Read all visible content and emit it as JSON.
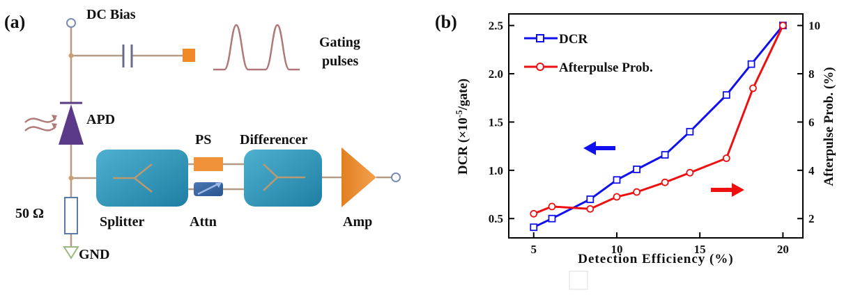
{
  "panel_a": {
    "label": "(a)",
    "dc_bias": "DC Bias",
    "gating_line1": "Gating",
    "gating_line2": "pulses",
    "apd": "APD",
    "ps": "PS",
    "differencer": "Differencer",
    "splitter": "Splitter",
    "attn": "Attn",
    "amp": "Amp",
    "resistor": "50 Ω",
    "gnd": "GND"
  },
  "panel_b": {
    "label": "(b)"
  },
  "chart_data": {
    "type": "line",
    "xlabel": "Detection Efficiency (%)",
    "ylabel_left": "DCR (×10",
    "ylabel_left_exp": "-5",
    "ylabel_left_tail": "/gate)",
    "ylabel_right": "Afterpulse Prob. (%)",
    "xlim": [
      3.5,
      21.2
    ],
    "ylim_left": [
      0.3,
      2.62
    ],
    "ylim_right": [
      1.2,
      10.48
    ],
    "x_ticks": [
      5,
      10,
      15,
      20
    ],
    "y_left_ticks": [
      0.5,
      1.0,
      1.5,
      2.0,
      2.5
    ],
    "y_left_tick_labels": [
      "0.5",
      "1.0",
      "1.5",
      "2.0",
      "2.5"
    ],
    "y_right_ticks": [
      2,
      4,
      6,
      8,
      10
    ],
    "legend_position": "top-left",
    "series": [
      {
        "name": "DCR",
        "axis": "left",
        "color": "#1010ee",
        "marker": "square",
        "x": [
          5.0,
          6.1,
          8.4,
          10.0,
          11.2,
          12.9,
          14.4,
          16.6,
          18.1,
          20.0
        ],
        "y": [
          0.41,
          0.5,
          0.7,
          0.9,
          1.01,
          1.16,
          1.4,
          1.78,
          2.1,
          2.5
        ]
      },
      {
        "name": "Afterpulse Prob.",
        "axis": "right",
        "color": "#ee1010",
        "marker": "circle",
        "x": [
          5.0,
          6.1,
          8.4,
          10.0,
          11.2,
          12.9,
          14.4,
          16.6,
          18.2,
          20.0
        ],
        "y": [
          2.2,
          2.5,
          2.4,
          2.9,
          3.1,
          3.5,
          3.9,
          4.5,
          7.4,
          10.0
        ]
      }
    ],
    "arrows": [
      {
        "points_to": "left-axis",
        "color": "#1010ee"
      },
      {
        "points_to": "right-axis",
        "color": "#ee1010"
      }
    ]
  }
}
